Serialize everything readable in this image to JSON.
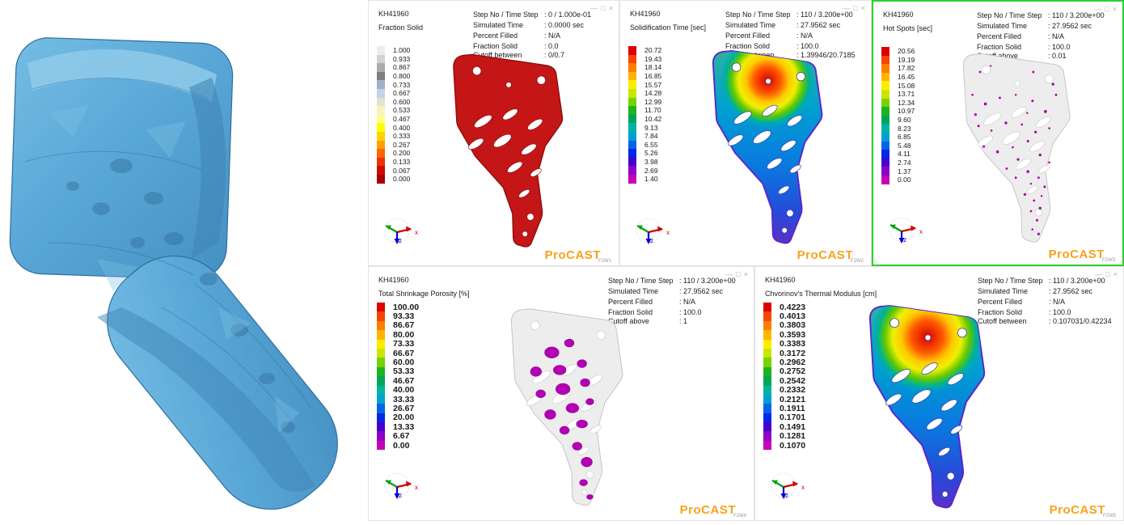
{
  "brand": {
    "logo_text": "ProCAST",
    "logo_color": "#F7A21B"
  },
  "window_controls": {
    "minimize": "—",
    "maximize": "□",
    "close": "×"
  },
  "axes": {
    "x": "x",
    "z": "z"
  },
  "colors": {
    "selected_border": "#2BD22B",
    "part_blue": "#58A6D6",
    "spot_magenta": "#AA00AA"
  },
  "scale_colors": {
    "fraction_solid": [
      "#EDEDED",
      "#D2D2D2",
      "#ABABAB",
      "#7F7F7F",
      "#9FB0C8",
      "#C2D4E8",
      "#E6E2D0",
      "#F5F5C0",
      "#FFFF8C",
      "#FFFF00",
      "#FFD200",
      "#FFA000",
      "#FF6400",
      "#F03000",
      "#D00A00",
      "#A80000"
    ],
    "rainbow": [
      "#DC0000",
      "#F44600",
      "#FF7D00",
      "#FFB400",
      "#FFEB00",
      "#C8E600",
      "#78D200",
      "#1EB41E",
      "#00A55A",
      "#00B4A0",
      "#00A0D2",
      "#0064E6",
      "#0028E6",
      "#4600C8",
      "#8C00C8",
      "#C800B4"
    ]
  },
  "panels": [
    {
      "window_id": "F2W1",
      "part_no": "KH41960",
      "quantity": "Fraction Solid",
      "info": [
        {
          "label": "Step No / Time Step",
          "value": ": 0 / 1.000e-01"
        },
        {
          "label": "Simulated Time",
          "value": ": 0.0000 sec"
        },
        {
          "label": "Percent Filled",
          "value": ": N/A"
        },
        {
          "label": "Fraction Solid",
          "value": ": 0.0"
        },
        {
          "label": "Cutoff between",
          "value": ": 0/0.7"
        }
      ],
      "scale_values": [
        "1.000",
        "0.933",
        "0.867",
        "0.800",
        "0.733",
        "0.667",
        "0.600",
        "0.533",
        "0.467",
        "0.400",
        "0.333",
        "0.267",
        "0.200",
        "0.133",
        "0.067",
        "0.000"
      ],
      "scale": "fraction_solid",
      "model": "red",
      "selected": false,
      "bold_scale": false
    },
    {
      "window_id": "F2W2",
      "part_no": "KH41960",
      "quantity": "Solidification Time [sec]",
      "info": [
        {
          "label": "Step No / Time Step",
          "value": ": 110 / 3.200e+00"
        },
        {
          "label": "Simulated Time",
          "value": ": 27.9562 sec"
        },
        {
          "label": "Percent Filled",
          "value": ": N/A"
        },
        {
          "label": "Fraction Solid",
          "value": ": 100.0"
        },
        {
          "label": "Cutoff between",
          "value": ": 1.39946/20.7185"
        }
      ],
      "scale_values": [
        "20.72",
        "19.43",
        "18.14",
        "16.85",
        "15.57",
        "14.28",
        "12.99",
        "11.70",
        "10.42",
        "9.13",
        "7.84",
        "6.55",
        "5.26",
        "3.98",
        "2.69",
        "1.40"
      ],
      "scale": "rainbow",
      "model": "rainbow",
      "selected": false,
      "bold_scale": false
    },
    {
      "window_id": "F2W3",
      "part_no": "KH41960",
      "quantity": "Hot Spots [sec]",
      "info": [
        {
          "label": "Step No / Time Step",
          "value": ": 110 / 3.200e+00"
        },
        {
          "label": "Simulated Time",
          "value": ": 27.9562 sec"
        },
        {
          "label": "Percent Filled",
          "value": ": N/A"
        },
        {
          "label": "Fraction Solid",
          "value": ": 100.0"
        },
        {
          "label": "Cutoff above",
          "value": ": 0.01"
        }
      ],
      "scale_values": [
        "20.56",
        "19.19",
        "17.82",
        "16.45",
        "15.08",
        "13.71",
        "12.34",
        "10.97",
        "9.60",
        "8.23",
        "6.85",
        "5.48",
        "4.11",
        "2.74",
        "1.37",
        "0.00"
      ],
      "scale": "rainbow",
      "model": "spots_small",
      "selected": true,
      "bold_scale": false
    },
    {
      "window_id": "F2W4",
      "part_no": "KH41960",
      "quantity": "Total Shrinkage Porosity [%]",
      "info": [
        {
          "label": "Step No / Time Step",
          "value": ": 110 / 3.200e+00"
        },
        {
          "label": "Simulated Time",
          "value": ": 27.9562 sec"
        },
        {
          "label": "Percent Filled",
          "value": ": N/A"
        },
        {
          "label": "Fraction Solid",
          "value": ": 100.0"
        },
        {
          "label": "Cutoff above",
          "value": ": 1"
        }
      ],
      "scale_values": [
        "100.00",
        "93.33",
        "86.67",
        "80.00",
        "73.33",
        "66.67",
        "60.00",
        "53.33",
        "46.67",
        "40.00",
        "33.33",
        "26.67",
        "20.00",
        "13.33",
        "6.67",
        "0.00"
      ],
      "scale": "rainbow",
      "model": "spots_large",
      "selected": false,
      "bold_scale": true
    },
    {
      "window_id": "F2W5",
      "part_no": "KH41960",
      "quantity": "Chvorinov's Thermal Modulus [cm]",
      "info": [
        {
          "label": "Step No / Time Step",
          "value": ": 110 / 3.200e+00"
        },
        {
          "label": "Simulated Time",
          "value": ": 27.9562 sec"
        },
        {
          "label": "Percent Filled",
          "value": ": N/A"
        },
        {
          "label": "Fraction Solid",
          "value": ": 100.0"
        },
        {
          "label": "Cutoff between",
          "value": ": 0.107031/0.42234"
        }
      ],
      "scale_values": [
        "0.4223",
        "0.4013",
        "0.3803",
        "0.3593",
        "0.3383",
        "0.3172",
        "0.2962",
        "0.2752",
        "0.2542",
        "0.2332",
        "0.2121",
        "0.1911",
        "0.1701",
        "0.1491",
        "0.1281",
        "0.1070"
      ],
      "scale": "rainbow",
      "model": "rainbow_wide",
      "selected": false,
      "bold_scale": true
    }
  ]
}
